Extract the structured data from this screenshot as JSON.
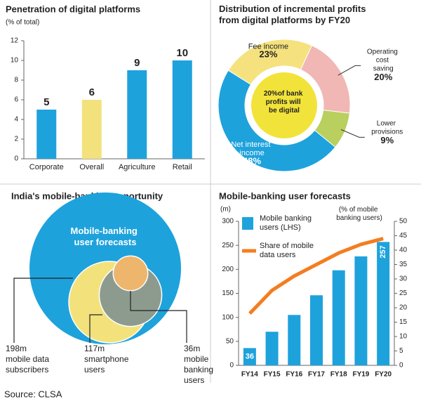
{
  "chart_data": [
    {
      "type": "bar",
      "title": "Penetration of digital platforms",
      "subtitle": "(% of total)",
      "categories": [
        "Corporate",
        "Overall",
        "Agriculture",
        "Retail"
      ],
      "values": [
        5,
        6,
        9,
        10
      ],
      "colors": [
        "#1ea2dc",
        "#f3e27c",
        "#1ea2dc",
        "#1ea2dc"
      ],
      "ylim": [
        0,
        12
      ],
      "yticks": [
        0,
        2,
        4,
        6,
        8,
        10,
        12
      ]
    },
    {
      "type": "donut",
      "title": "Distribution of incremental profits from digital platforms by FY20",
      "center_label": "20%of bank profits will be digital",
      "center_color": "#f2e33a",
      "categories": [
        "Fee income",
        "Operating cost saving",
        "Lower provisions",
        "Net interest income"
      ],
      "values": [
        23,
        20,
        9,
        48
      ],
      "value_labels": [
        "23%",
        "20%",
        "9%",
        "48%"
      ],
      "colors": [
        "#f5e27e",
        "#f1b7b4",
        "#b9cf5e",
        "#1ea2dc"
      ]
    },
    {
      "type": "bubble",
      "title": "India's mobile-banking opportunity",
      "annotation": "Mobile-banking user forecasts",
      "background_color": "#1ea2dc",
      "categories": [
        "mobile data subscribers",
        "smartphone users",
        "mobile banking users"
      ],
      "values": [
        198,
        117,
        36
      ],
      "value_labels": [
        "198m",
        "117m",
        "36m"
      ],
      "colors": [
        "#f3e27c",
        "#8d9b8f",
        "#eeb56c"
      ]
    },
    {
      "type": "combo",
      "title": "Mobile-banking user forecasts",
      "ylabel": "(m)",
      "y2label": "(% of mobile banking users)",
      "categories": [
        "FY14",
        "FY15",
        "FY16",
        "FY17",
        "FY18",
        "FY19",
        "FY20"
      ],
      "series": [
        {
          "name": "Mobile banking users (LHS)",
          "type": "bar",
          "color": "#1ea2dc",
          "values": [
            36,
            70,
            105,
            146,
            198,
            227,
            257
          ],
          "value_labels": [
            "36",
            null,
            null,
            null,
            null,
            null,
            "257"
          ]
        },
        {
          "name": "Share of mobile data users",
          "type": "line",
          "color": "#f47d20",
          "axis": "y2",
          "values": [
            18,
            26,
            31,
            35,
            39,
            42,
            44
          ]
        }
      ],
      "ylim": [
        0,
        300
      ],
      "yticks": [
        0,
        50,
        100,
        150,
        200,
        250,
        300
      ],
      "y2lim": [
        0,
        50
      ],
      "y2ticks": [
        0,
        5,
        10,
        15,
        20,
        25,
        30,
        35,
        40,
        45,
        50
      ]
    }
  ],
  "source": "Source: CLSA"
}
